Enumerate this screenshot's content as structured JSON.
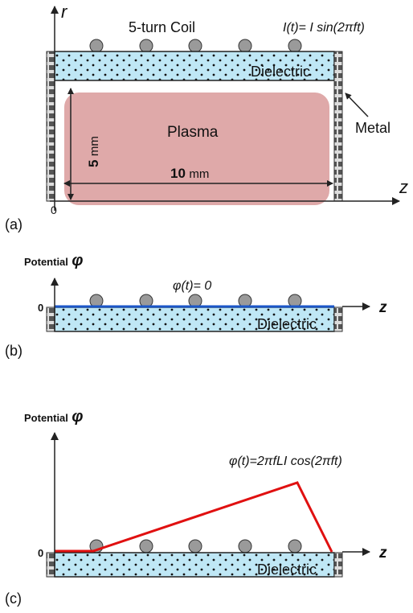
{
  "panel_a": {
    "axis_r": "r",
    "coil_label": "5-turn Coil",
    "current": "I(t)= I sin(2πft)",
    "dielectric": "Dielectric",
    "metal": "Metal",
    "plasma": "Plasma",
    "height_value": "5",
    "height_unit": "mm",
    "width_value": "10",
    "width_unit": "mm",
    "axis_z": "z",
    "origin": "0",
    "label": "(a)"
  },
  "panel_b": {
    "y_label": "Potential",
    "y_symbol": "φ",
    "equation": "φ(t)= 0",
    "zero": "0",
    "axis_z": "z",
    "dielectric": "Dielectric",
    "label": "(b)"
  },
  "panel_c": {
    "y_label": "Potential",
    "y_symbol": "φ",
    "equation": "φ(t)=2πfLI cos(2πft)",
    "zero": "0",
    "axis_z": "z",
    "dielectric": "Dielectric",
    "label": "(c)"
  }
}
